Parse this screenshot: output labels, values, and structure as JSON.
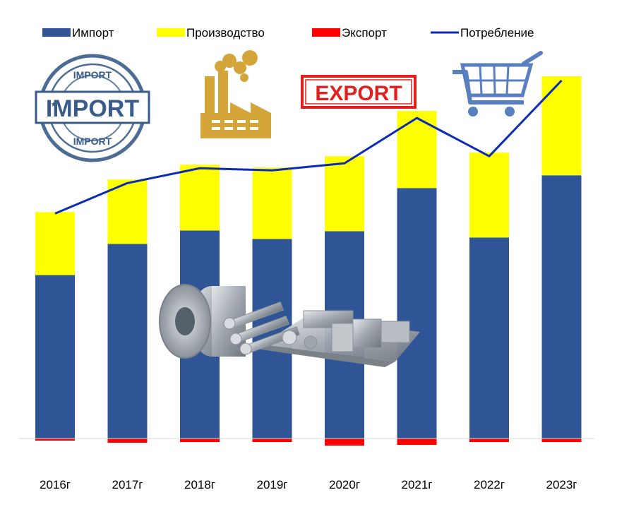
{
  "chart_data": {
    "type": "bar",
    "stacked": true,
    "categories": [
      "2016г",
      "2017г",
      "2018г",
      "2019г",
      "2020г",
      "2021г",
      "2022г",
      "2023г"
    ],
    "series": [
      {
        "name": "Импорт",
        "kind": "bar",
        "color": "#2F5597",
        "values": [
          231,
          275,
          294,
          282,
          293,
          354,
          284,
          372
        ]
      },
      {
        "name": "Производство",
        "kind": "bar",
        "color": "#FFFF00",
        "values": [
          89,
          91,
          93,
          101,
          106,
          109,
          120,
          140
        ]
      },
      {
        "name": "Экспорт",
        "kind": "bar",
        "color": "#FF0000",
        "values": [
          -3,
          -6,
          -5,
          -5,
          -10,
          -9,
          -5,
          -5
        ]
      },
      {
        "name": "Потребление",
        "kind": "line",
        "color": "#0A2BB5",
        "values": [
          318,
          361,
          382,
          379,
          389,
          453,
          399,
          506
        ]
      }
    ],
    "ylim": [
      -15,
      560
    ],
    "grid": false,
    "legend_position": "top"
  },
  "decorations": {
    "stamp_import": {
      "text": "IMPORT",
      "color": "#3A5C8A"
    },
    "stamp_export": {
      "text": "EXPORT",
      "color": "#E0201E"
    },
    "factory_icon": {
      "color": "#D4A63A"
    },
    "cart_icon": {
      "color": "#5A7FC0"
    },
    "metal_products": {
      "color": "#A9AFB6"
    }
  }
}
